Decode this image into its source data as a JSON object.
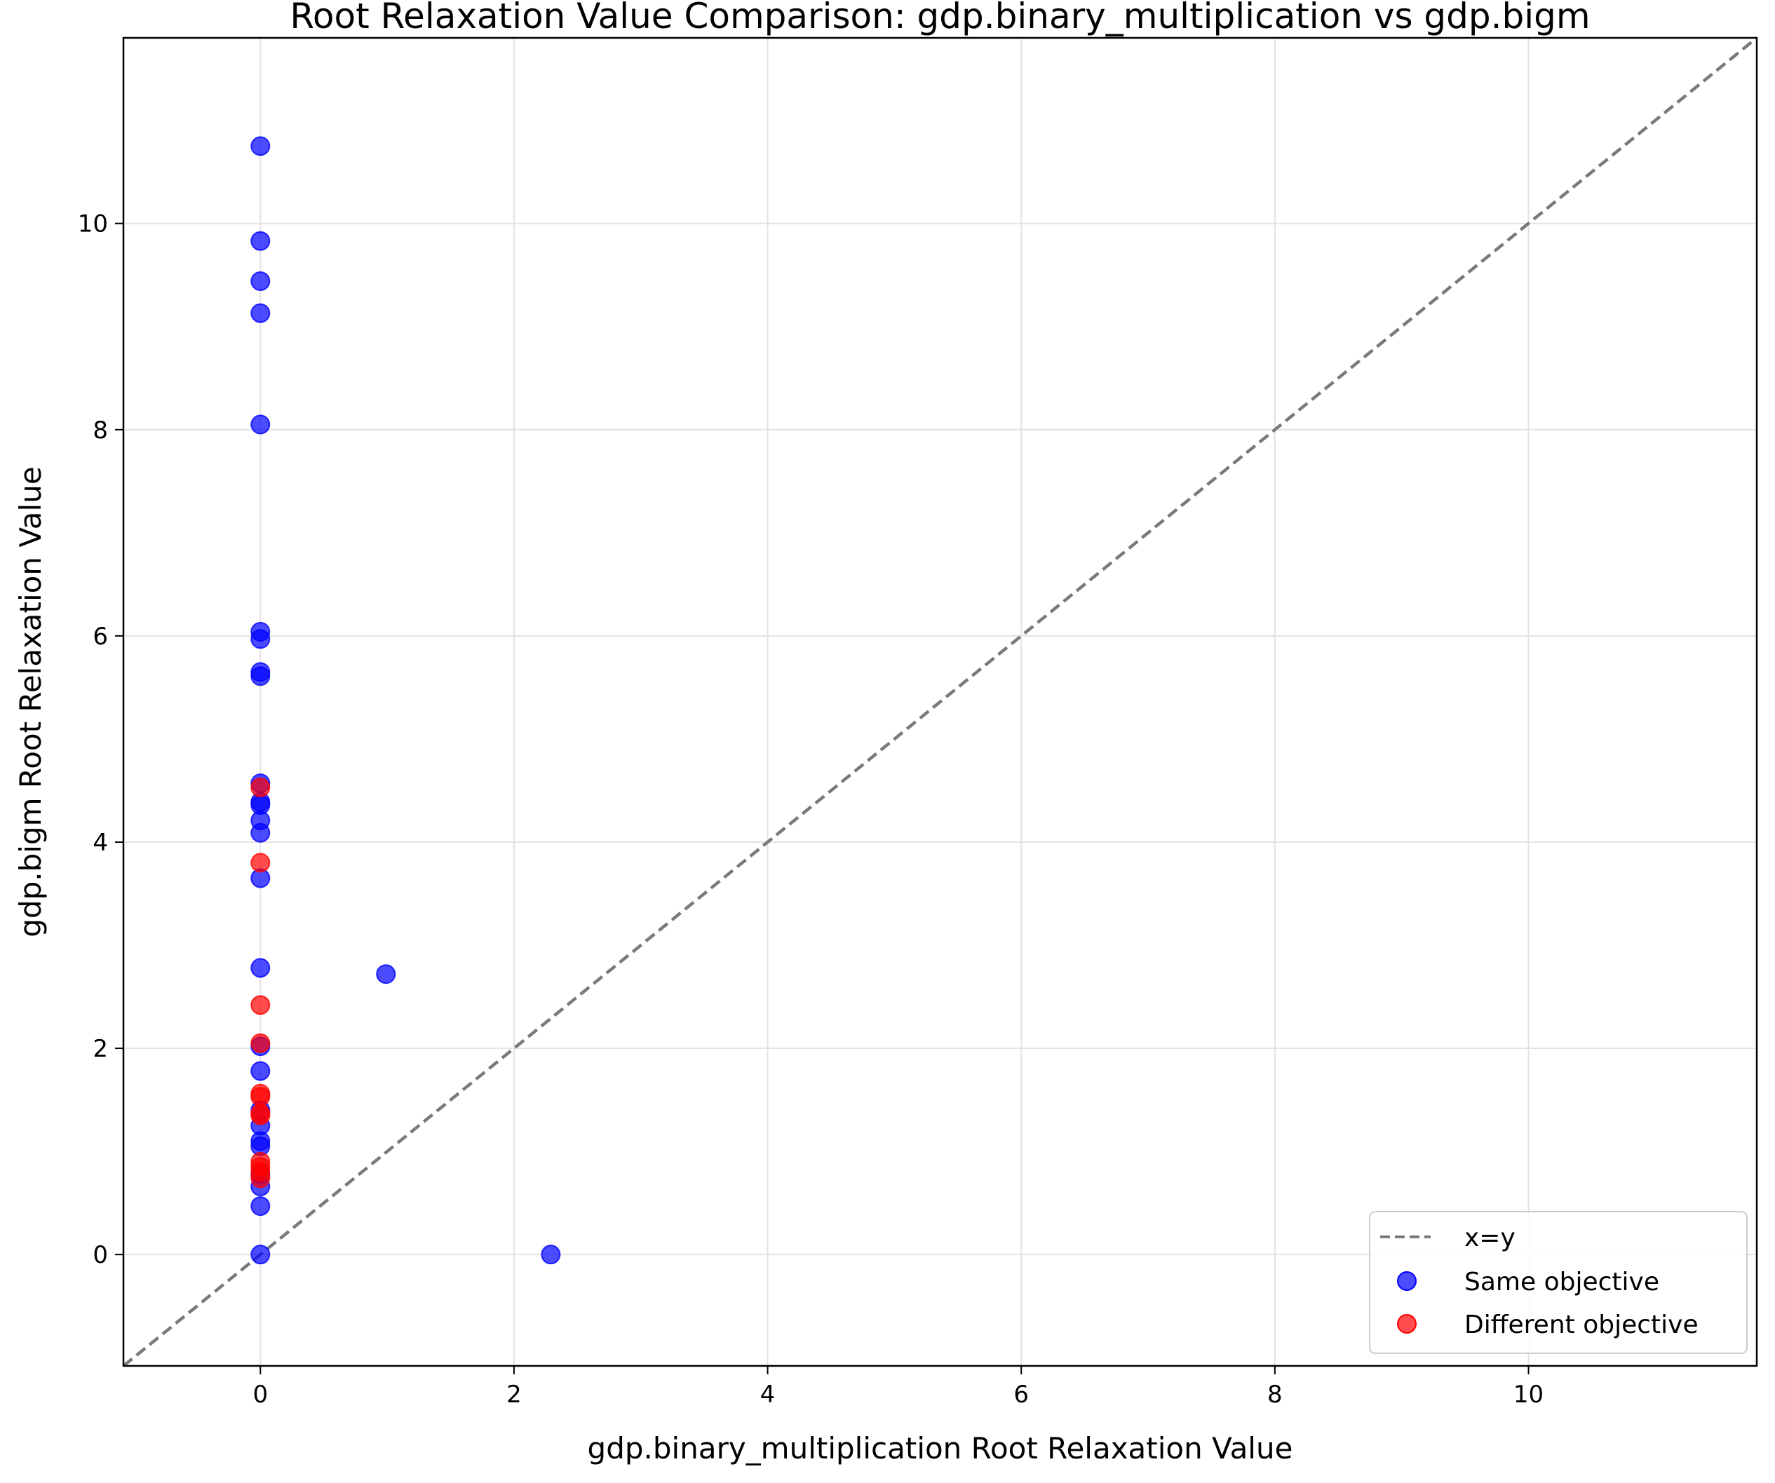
{
  "chart_data": {
    "type": "scatter",
    "title": "Root Relaxation Value Comparison: gdp.binary_multiplication vs gdp.bigm",
    "xlabel": "gdp.binary_multiplication Root Relaxation Value",
    "ylabel": "gdp.bigm Root Relaxation Value",
    "xlim": [
      -1.08,
      11.8
    ],
    "ylim": [
      -1.08,
      11.8
    ],
    "xticks": [
      0,
      2,
      4,
      6,
      8,
      10
    ],
    "yticks": [
      0,
      2,
      4,
      6,
      8,
      10
    ],
    "grid": true,
    "legend_position": "bottom-right",
    "reference_line": {
      "name": "x=y",
      "style": "dashed",
      "color": "#7a7a7a"
    },
    "series": [
      {
        "name": "Same objective",
        "color": "#0000ff",
        "points": [
          {
            "x": 0,
            "y": 10.75
          },
          {
            "x": 0,
            "y": 9.83
          },
          {
            "x": 0,
            "y": 9.44
          },
          {
            "x": 0,
            "y": 9.13
          },
          {
            "x": 0,
            "y": 8.05
          },
          {
            "x": 0,
            "y": 6.04
          },
          {
            "x": 0,
            "y": 5.97
          },
          {
            "x": 0,
            "y": 5.65
          },
          {
            "x": 0,
            "y": 5.61
          },
          {
            "x": 0,
            "y": 4.57
          },
          {
            "x": 0,
            "y": 4.39
          },
          {
            "x": 0,
            "y": 4.36
          },
          {
            "x": 0,
            "y": 4.21
          },
          {
            "x": 0,
            "y": 4.09
          },
          {
            "x": 0,
            "y": 3.65
          },
          {
            "x": 0,
            "y": 2.78
          },
          {
            "x": 0.99,
            "y": 2.72
          },
          {
            "x": 0,
            "y": 2.02
          },
          {
            "x": 0,
            "y": 1.78
          },
          {
            "x": 0,
            "y": 1.4
          },
          {
            "x": 0,
            "y": 1.25
          },
          {
            "x": 0,
            "y": 1.1
          },
          {
            "x": 0,
            "y": 1.05
          },
          {
            "x": 0,
            "y": 0.78
          },
          {
            "x": 0,
            "y": 0.66
          },
          {
            "x": 0,
            "y": 0.47
          },
          {
            "x": 0,
            "y": 0.0
          },
          {
            "x": 2.29,
            "y": 0.0
          }
        ]
      },
      {
        "name": "Different objective",
        "color": "#ff0000",
        "points": [
          {
            "x": 0,
            "y": 4.53
          },
          {
            "x": 0,
            "y": 3.8
          },
          {
            "x": 0,
            "y": 2.42
          },
          {
            "x": 0,
            "y": 2.05
          },
          {
            "x": 0,
            "y": 1.56
          },
          {
            "x": 0,
            "y": 1.53
          },
          {
            "x": 0,
            "y": 1.37
          },
          {
            "x": 0,
            "y": 1.35
          },
          {
            "x": 0,
            "y": 0.9
          },
          {
            "x": 0,
            "y": 0.85
          },
          {
            "x": 0,
            "y": 0.8
          },
          {
            "x": 0,
            "y": 0.74
          }
        ]
      }
    ]
  }
}
